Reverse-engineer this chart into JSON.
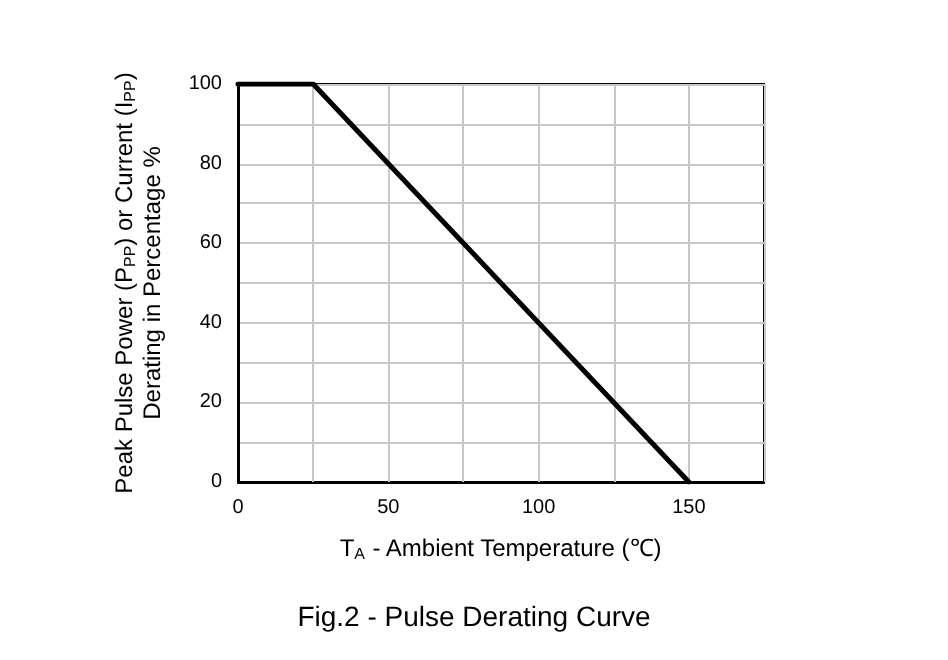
{
  "chart_data": {
    "type": "line",
    "title": "Fig.2 - Pulse Derating Curve",
    "xlabel": "T$_{A}$ - Ambient Temperature (℃)",
    "ylabel": "Peak Pulse Power (P$_{PP}$) or Current (I$_{PP}$)\nDerating in Percentage %",
    "x": [
      0,
      25,
      150
    ],
    "series": [
      {
        "color": "#000000",
        "values": [
          100,
          100,
          0
        ]
      }
    ],
    "xlim": [
      0,
      175
    ],
    "xticks": [
      0,
      {
        "value": 25,
        "label": null
      },
      50,
      {
        "value": 75,
        "label": null
      },
      100,
      {
        "value": 125,
        "label": null
      },
      150,
      {
        "value": 175,
        "label": null
      }
    ],
    "ylim": [
      0,
      100
    ],
    "yticks": [
      0,
      {
        "value": 10,
        "label": null
      },
      20,
      {
        "value": 30,
        "label": null
      },
      40,
      {
        "value": 50,
        "label": null
      },
      60,
      {
        "value": 70,
        "label": null
      },
      80,
      {
        "value": 90,
        "label": null
      },
      100
    ],
    "grid": true,
    "marker": "none",
    "line_style": "solid"
  }
}
